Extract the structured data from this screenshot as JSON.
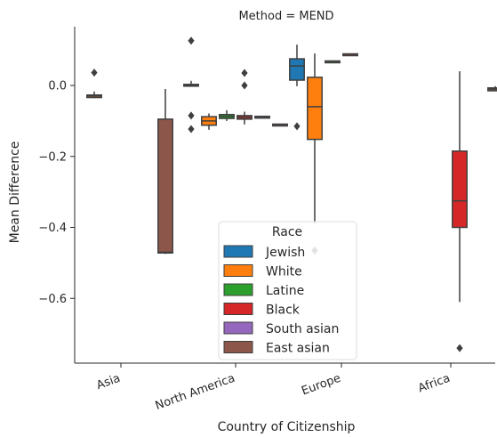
{
  "chart_data": {
    "type": "box",
    "title": "Method = MEND",
    "xlabel": "Country of Citizenship",
    "ylabel": "Mean Difference",
    "categories": [
      "Asia",
      "North America",
      "Europe",
      "Africa"
    ],
    "ylim": [
      -0.78,
      0.17
    ],
    "yticks": [
      0.0,
      -0.2,
      -0.4,
      -0.6
    ],
    "ytick_labels": [
      "0.0",
      "−0.2",
      "−0.4",
      "−0.6"
    ],
    "legend": {
      "title": "Race",
      "position": "lower center"
    },
    "series": [
      {
        "name": "Jewish",
        "color": "#1f77b4"
      },
      {
        "name": "White",
        "color": "#ff7f0e"
      },
      {
        "name": "Latine",
        "color": "#2ca02c"
      },
      {
        "name": "Black",
        "color": "#d62728"
      },
      {
        "name": "South asian",
        "color": "#9467bd"
      },
      {
        "name": "East asian",
        "color": "#8c564b"
      }
    ],
    "boxes": [
      {
        "category": "Asia",
        "series": "White",
        "whisker_low": -0.036,
        "q1": -0.034,
        "median": -0.03,
        "q3": -0.027,
        "whisker_high": -0.017,
        "outliers": [
          0.036
        ]
      },
      {
        "category": "Asia",
        "series": "East asian",
        "whisker_low": -0.475,
        "q1": -0.472,
        "median": -0.47,
        "q3": -0.095,
        "whisker_high": -0.01,
        "outliers": []
      },
      {
        "category": "North America",
        "series": "Jewish",
        "whisker_low": -0.002,
        "q1": -0.002,
        "median": 0.0,
        "q3": 0.003,
        "whisker_high": 0.013,
        "outliers": [
          0.126,
          -0.085,
          -0.123
        ]
      },
      {
        "category": "North America",
        "series": "White",
        "whisker_low": -0.125,
        "q1": -0.112,
        "median": -0.1,
        "q3": -0.088,
        "whisker_high": -0.079,
        "outliers": []
      },
      {
        "category": "North America",
        "series": "Latine",
        "whisker_low": -0.1,
        "q1": -0.093,
        "median": -0.087,
        "q3": -0.082,
        "whisker_high": -0.07,
        "outliers": []
      },
      {
        "category": "North America",
        "series": "Black",
        "whisker_low": -0.11,
        "q1": -0.095,
        "median": -0.09,
        "q3": -0.085,
        "whisker_high": -0.074,
        "outliers": [
          0.035,
          0.0
        ]
      },
      {
        "category": "North America",
        "series": "South asian",
        "whisker_low": -0.09,
        "q1": -0.09,
        "median": -0.088,
        "q3": -0.087,
        "whisker_high": -0.087,
        "outliers": []
      },
      {
        "category": "North America",
        "series": "East asian",
        "whisker_low": -0.113,
        "q1": -0.112,
        "median": -0.11,
        "q3": -0.109,
        "whisker_high": -0.108,
        "outliers": []
      },
      {
        "category": "Europe",
        "series": "Jewish",
        "whisker_low": -0.002,
        "q1": 0.015,
        "median": 0.055,
        "q3": 0.075,
        "whisker_high": 0.115,
        "outliers": [
          -0.115
        ]
      },
      {
        "category": "Europe",
        "series": "White",
        "whisker_low": -0.39,
        "q1": -0.152,
        "median": -0.06,
        "q3": 0.023,
        "whisker_high": 0.09,
        "outliers": [
          -0.465
        ]
      },
      {
        "category": "Europe",
        "series": "Latine",
        "whisker_low": 0.067,
        "q1": 0.067,
        "median": 0.068,
        "q3": 0.069,
        "whisker_high": 0.069,
        "outliers": []
      },
      {
        "category": "Europe",
        "series": "Black",
        "whisker_low": 0.087,
        "q1": 0.088,
        "median": 0.088,
        "q3": 0.089,
        "whisker_high": 0.089,
        "outliers": []
      },
      {
        "category": "Africa",
        "series": "Black",
        "whisker_low": -0.61,
        "q1": -0.4,
        "median": -0.325,
        "q3": -0.185,
        "whisker_high": 0.04,
        "outliers": [
          -0.74
        ]
      },
      {
        "category": "Africa",
        "series": "East asian",
        "whisker_low": -0.015,
        "q1": -0.015,
        "median": -0.01,
        "q3": -0.007,
        "whisker_high": -0.002,
        "outliers": []
      }
    ]
  }
}
